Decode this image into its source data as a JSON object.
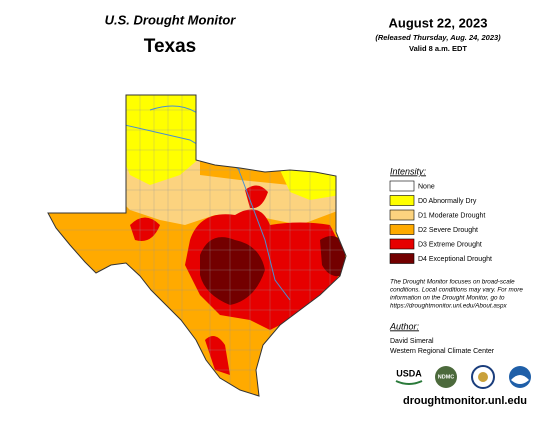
{
  "header": {
    "title": "U.S. Drought Monitor",
    "state": "Texas",
    "date": "August 22, 2023",
    "released": "(Released Thursday, Aug. 24, 2023)",
    "valid": "Valid 8 a.m. EDT"
  },
  "legend": {
    "title": "Intensity:",
    "items": [
      {
        "label": "None",
        "color": "#ffffff"
      },
      {
        "label": "D0 Abnormally Dry",
        "color": "#ffff00"
      },
      {
        "label": "D1 Moderate Drought",
        "color": "#fcd37f"
      },
      {
        "label": "D2 Severe Drought",
        "color": "#ffaa00"
      },
      {
        "label": "D3 Extreme Drought",
        "color": "#e60000"
      },
      {
        "label": "D4 Exceptional Drought",
        "color": "#730000"
      }
    ]
  },
  "note": [
    "The Drought Monitor focuses on broad-scale",
    "conditions. Local conditions may vary. For more",
    "information on the Drought Monitor, go to",
    "https://droughtmonitor.unl.edu/About.aspx"
  ],
  "author": {
    "label": "Author:",
    "name": "David Simeral",
    "org": "Western Regional Climate Center"
  },
  "logos": [
    "USDA",
    "NDMC"
  ],
  "url": "droughtmonitor.unl.edu"
}
